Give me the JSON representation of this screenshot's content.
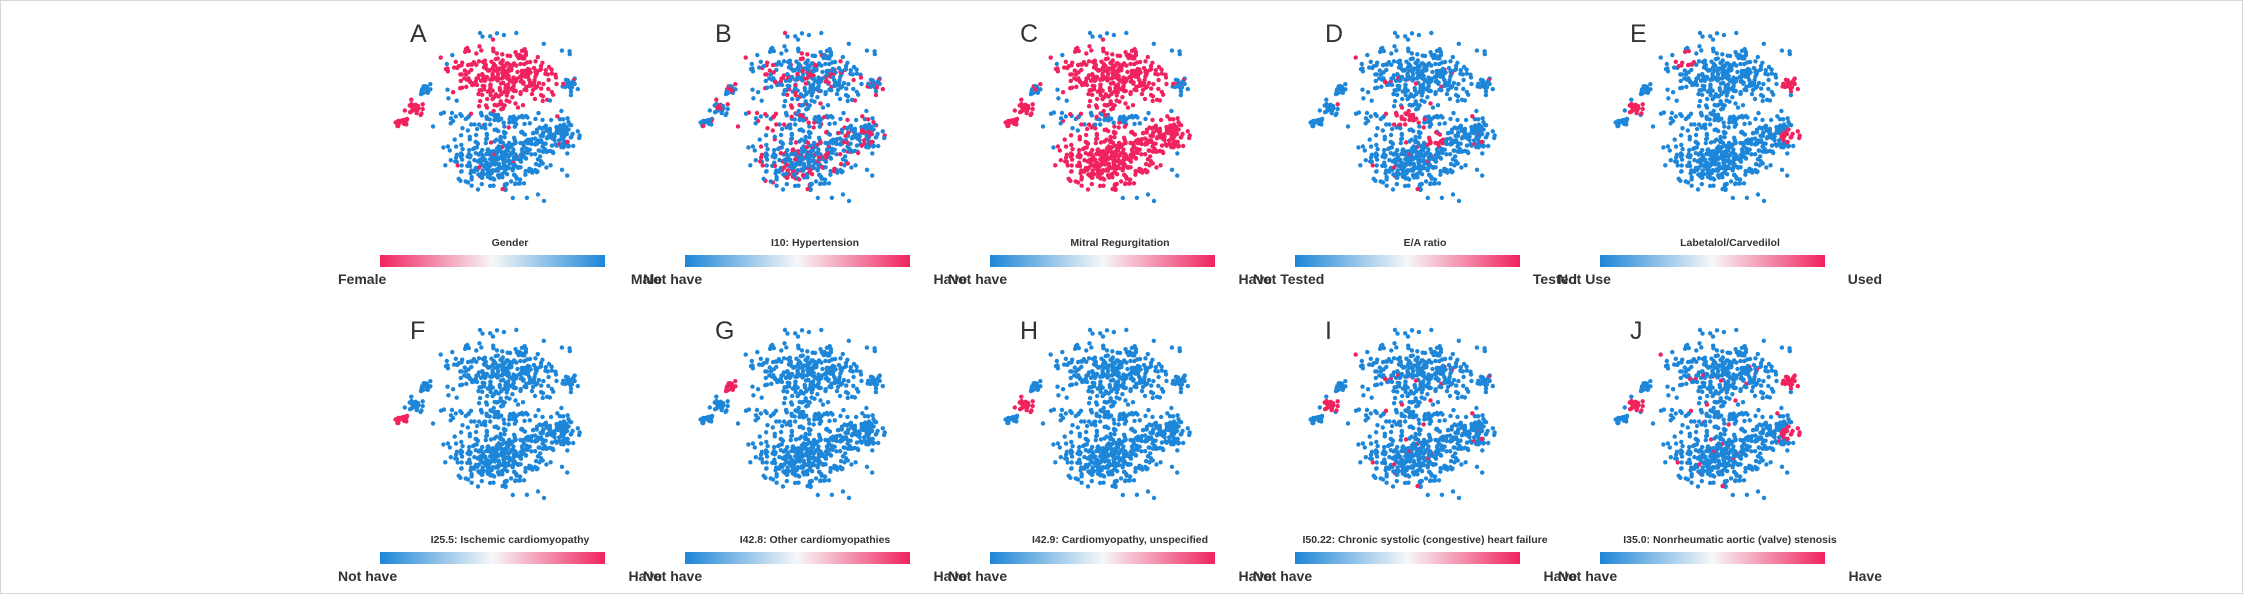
{
  "colors": {
    "red": "#f0235f",
    "blue": "#1d86d8",
    "mid": "#f7f7f7"
  },
  "chart_data": [
    {
      "type": "scatter",
      "panel": "A",
      "title": "Gender",
      "low_label": "Female",
      "high_label": "Male",
      "gradient": "red-to-blue",
      "highlight_color": "red",
      "highlight_clusters": [
        "top",
        "left-tips",
        "few-scattered"
      ]
    },
    {
      "type": "scatter",
      "panel": "B",
      "title": "I10: Hypertension",
      "low_label": "Not have",
      "high_label": "Have",
      "gradient": "blue-to-red",
      "highlight_color": "red",
      "highlight_clusters": [
        "scattered-mixed"
      ]
    },
    {
      "type": "scatter",
      "panel": "C",
      "title": "Mitral Regurgitation",
      "low_label": "Not have",
      "high_label": "Have",
      "gradient": "blue-to-red",
      "highlight_color": "red",
      "highlight_clusters": [
        "top",
        "bottom",
        "left-tips"
      ]
    },
    {
      "type": "scatter",
      "panel": "D",
      "title": "E/A ratio",
      "low_label": "Not Tested",
      "high_label": "Tested",
      "gradient": "blue-to-red",
      "highlight_color": "red",
      "highlight_clusters": [
        "middle-small",
        "few-scattered"
      ]
    },
    {
      "type": "scatter",
      "panel": "E",
      "title": "Labetalol/Carvedilol",
      "low_label": "Not Use",
      "high_label": "Used",
      "gradient": "blue-to-red",
      "highlight_color": "red",
      "highlight_clusters": [
        "top-left",
        "right-small",
        "left-small"
      ]
    },
    {
      "type": "scatter",
      "panel": "F",
      "title": "I25.5: Ischemic cardiomyopathy",
      "low_label": "Not have",
      "high_label": "Have",
      "gradient": "blue-to-red",
      "highlight_color": "red",
      "highlight_clusters": [
        "far-left"
      ]
    },
    {
      "type": "scatter",
      "panel": "G",
      "title": "I42.8: Other cardiomyopathies",
      "low_label": "Not have",
      "high_label": "Have",
      "gradient": "blue-to-red",
      "highlight_color": "red",
      "highlight_clusters": [
        "left-top"
      ]
    },
    {
      "type": "scatter",
      "panel": "H",
      "title": "I42.9: Cardiomyopathy, unspecified",
      "low_label": "Not have",
      "high_label": "Have",
      "gradient": "blue-to-red",
      "highlight_color": "red",
      "highlight_clusters": [
        "left-middle"
      ]
    },
    {
      "type": "scatter",
      "panel": "I",
      "title": "I50.22: Chronic systolic (congestive) heart failure",
      "low_label": "Not have",
      "high_label": "Have",
      "gradient": "blue-to-red",
      "highlight_color": "red",
      "highlight_clusters": [
        "left-small",
        "few-scattered"
      ]
    },
    {
      "type": "scatter",
      "panel": "J",
      "title": "I35.0: Nonrheumatic aortic (valve) stenosis",
      "low_label": "Not have",
      "high_label": "Have",
      "gradient": "blue-to-red",
      "highlight_color": "red",
      "highlight_clusters": [
        "right-small",
        "left-small",
        "few-scattered"
      ]
    }
  ]
}
